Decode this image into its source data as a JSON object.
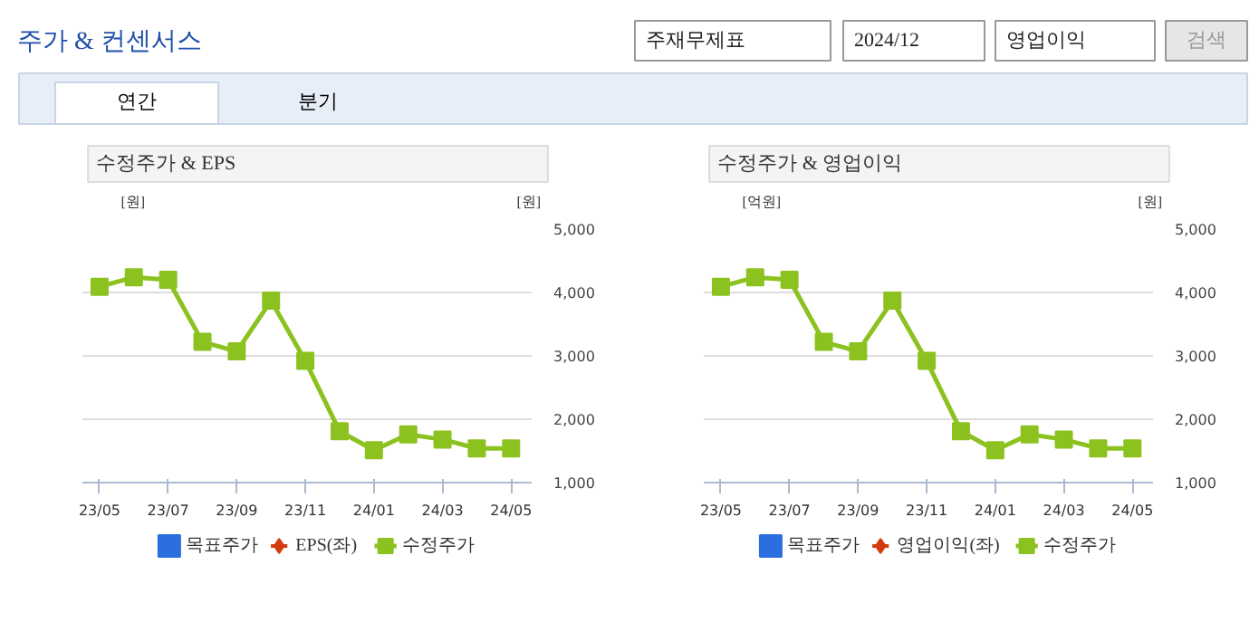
{
  "chart_data": [
    {
      "type": "line",
      "title": "수정주가 & EPS",
      "ylabel": "[원]",
      "y2label": "[원]",
      "annotations": [
        "주가 & 컨센서스",
        "주재무제표",
        "2024/12",
        "영업이익",
        "검색",
        "연간",
        "분기"
      ],
      "categories": [
        "23/05",
        null,
        "23/07",
        null,
        "23/09",
        null,
        "23/11",
        null,
        "24/01",
        null,
        "24/03",
        null,
        "24/05"
      ],
      "series": [
        {
          "name": "목표주가",
          "color": "#2a6ee0",
          "axis": "y2",
          "marker": "square",
          "values": [
            null,
            null,
            null,
            null,
            null,
            null,
            null,
            null,
            null,
            null,
            null,
            null,
            null
          ]
        },
        {
          "name": "EPS(좌)",
          "color": "#d33b0f",
          "marker": "diamond",
          "values": [
            null,
            null,
            null,
            null,
            null,
            null,
            null,
            null,
            null,
            null,
            null,
            null,
            null
          ]
        },
        {
          "name": "수정주가",
          "color": "#8cc21f",
          "axis": "y2",
          "marker": "square",
          "values": [
            4090,
            4240,
            4200,
            3220,
            3070,
            3870,
            2920,
            1810,
            1510,
            1760,
            1680,
            1540,
            1540
          ]
        }
      ],
      "y2lim": [
        1000,
        5000
      ],
      "y2ticks": [
        {
          "value": 1000,
          "label": "1,000"
        },
        {
          "value": 2000,
          "label": "2,000"
        },
        {
          "value": 3000,
          "label": "3,000"
        },
        {
          "value": 4000,
          "label": "4,000"
        },
        {
          "value": 5000,
          "label": "5,000"
        }
      ],
      "tick_labels": [
        "x",
        "y2"
      ],
      "grid": "y",
      "legend": "bottom"
    },
    {
      "type": "line",
      "title": "수정주가 & 영업이익",
      "ylabel": "[억원]",
      "y2label": "[원]",
      "categories": [
        "23/05",
        null,
        "23/07",
        null,
        "23/09",
        null,
        "23/11",
        null,
        "24/01",
        null,
        "24/03",
        null,
        "24/05"
      ],
      "series": [
        {
          "name": "목표주가",
          "color": "#2a6ee0",
          "axis": "y2",
          "marker": "square",
          "values": [
            null,
            null,
            null,
            null,
            null,
            null,
            null,
            null,
            null,
            null,
            null,
            null,
            null
          ]
        },
        {
          "name": "영업이익(좌)",
          "color": "#d33b0f",
          "marker": "diamond",
          "values": [
            null,
            null,
            null,
            null,
            null,
            null,
            null,
            null,
            null,
            null,
            null,
            null,
            null
          ]
        },
        {
          "name": "수정주가",
          "color": "#8cc21f",
          "axis": "y2",
          "marker": "square",
          "values": [
            4090,
            4240,
            4200,
            3220,
            3070,
            3870,
            2920,
            1810,
            1510,
            1760,
            1680,
            1540,
            1540
          ]
        }
      ],
      "y2lim": [
        1000,
        5000
      ],
      "y2ticks": [
        {
          "value": 1000,
          "label": "1,000"
        },
        {
          "value": 2000,
          "label": "2,000"
        },
        {
          "value": 3000,
          "label": "3,000"
        },
        {
          "value": 4000,
          "label": "4,000"
        },
        {
          "value": 5000,
          "label": "5,000"
        }
      ],
      "tick_labels": [
        "x",
        "y2"
      ],
      "grid": "y",
      "legend": "bottom"
    }
  ]
}
